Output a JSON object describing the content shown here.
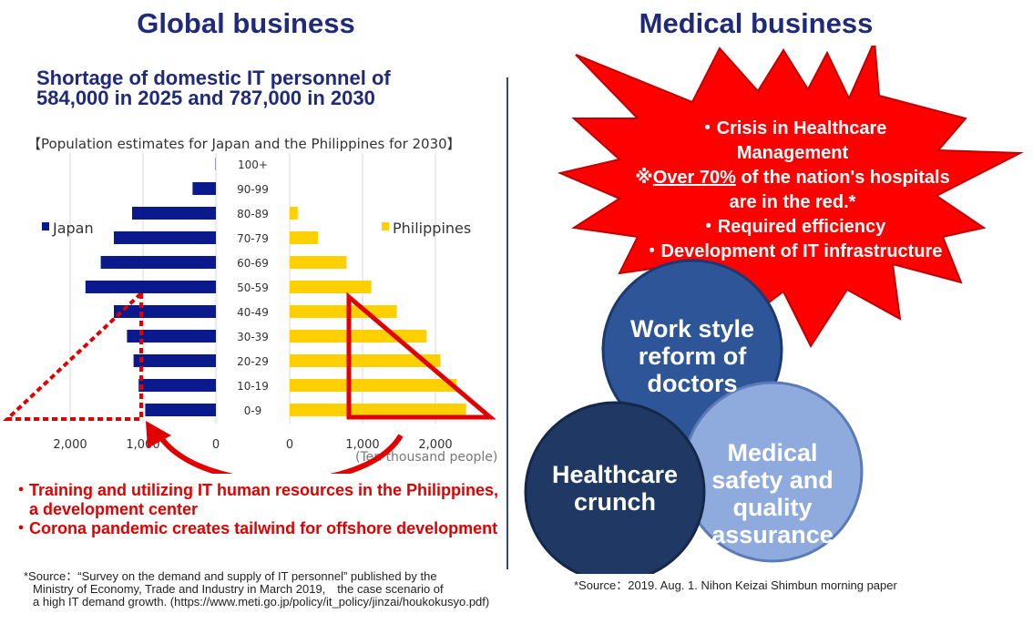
{
  "left_title": "Global business",
  "right_title": "Medical business",
  "headline_line1": "Shortage of domestic IT personnel of",
  "headline_line2": "584,000 in 2025 and 787,000 in 2030",
  "chart_caption": "【Population estimates for Japan and the Philippines for 2030】",
  "chart_data": {
    "type": "bar",
    "orientation": "horizontal",
    "categories": [
      "100+",
      "90-99",
      "80-89",
      "70-79",
      "60-69",
      "50-59",
      "40-49",
      "30-39",
      "20-29",
      "10-19",
      "0-9"
    ],
    "series": [
      {
        "name": "Japan",
        "color": "#0a1a8c",
        "values": [
          5,
          320,
          1150,
          1400,
          1580,
          1790,
          1400,
          1220,
          1130,
          1060,
          970
        ]
      },
      {
        "name": "Philippines",
        "color": "#ffd000",
        "values": [
          0,
          0,
          110,
          390,
          780,
          1120,
          1470,
          1880,
          2070,
          2290,
          2420
        ]
      }
    ],
    "japan_ticks": [
      "2,000",
      "1,000",
      "0"
    ],
    "philippines_ticks": [
      "0",
      "1,000",
      "2,000"
    ],
    "unit_label": "(Ten thousand people)",
    "xlim": [
      0,
      2500
    ],
    "legend_placement": "inside-left / inside-right"
  },
  "left_bullets": [
    "・Training and utilizing IT human resources in the Philippines, a development center",
    "・Corona pandemic creates tailwind for offshore development"
  ],
  "source_left": [
    "*Source：“Survey on the demand and supply of IT personnel” published by the",
    "Ministry of Economy, Trade and Industry in March 2019,　the case scenario of",
    "a high IT demand growth. (https://www.meti.go.jp/policy/it_policy/jinzai/houkokusyo.pdf)"
  ],
  "burst": {
    "line1": "・Crisis in Healthcare",
    "line2": "Management",
    "line3_prefix": "※",
    "line3_underlined": "Over 70%",
    "line3_suffix": " of the nation's hospitals",
    "line4": "are in the red.*",
    "line5": "・Required efficiency",
    "line6": "・Development of IT infrastructure"
  },
  "circles": {
    "top": [
      "Work style",
      "reform of",
      "doctors"
    ],
    "left": [
      "Healthcare",
      "crunch"
    ],
    "right": [
      "Medical",
      "safety and",
      "quality",
      "assurance"
    ]
  },
  "colors": {
    "title": "#1f2a7a",
    "accent_red": "#e00000",
    "burst": "#ff0000",
    "circle_top": "#2e5597",
    "circle_left": "#1f3864",
    "circle_right": "#8faadc"
  },
  "source_right": "*Source：2019. Aug. 1. Nihon Keizai Shimbun morning paper"
}
